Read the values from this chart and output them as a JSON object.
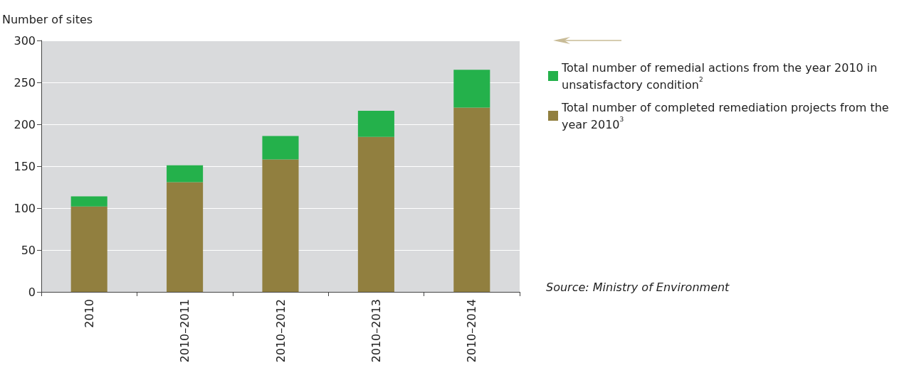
{
  "chart_data": {
    "type": "bar",
    "stacked": true,
    "ylabel": "Number of sites",
    "categories": [
      "2010",
      "2010–2011",
      "2010–2012",
      "2010–2013",
      "2010–2014"
    ],
    "series": [
      {
        "name": "Total number of completed remediation projects from the year 2010$^{3}$",
        "color": "#917f3f",
        "values": [
          102,
          131,
          158,
          185,
          220
        ]
      },
      {
        "name": "Total number of remedial actions from the year 2010 in unsatisfactory condition$^{2}$",
        "color": "#24b14b",
        "values": [
          12,
          20,
          28,
          31,
          45
        ]
      }
    ],
    "ylim": [
      0,
      300
    ],
    "yticks": [
      0,
      50,
      100,
      150,
      200,
      250,
      300
    ],
    "grid": "y",
    "legend": "right",
    "annotations": [
      "Source: Ministry of Environment"
    ]
  }
}
